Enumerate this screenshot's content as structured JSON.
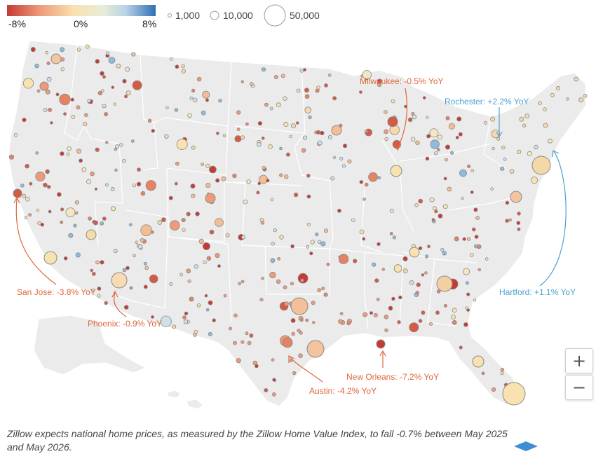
{
  "legend": {
    "color_ticks": [
      "-8%",
      "0%",
      "8%"
    ],
    "size_labels": [
      "1,000",
      "10,000",
      "50,000"
    ]
  },
  "colors": {
    "negative_strong": "#c63a36",
    "negative_mid": "#ee9a7a",
    "neutral": "#f8e2b0",
    "positive_mid": "#cfe0ea",
    "positive_strong": "#2f6fb5",
    "land": "#ebebeb",
    "border": "#ffffff",
    "annotation_negative": "#e0663b",
    "annotation_positive": "#4ba3cf"
  },
  "annotations": [
    {
      "id": "milwaukee",
      "text": "Milwaukee: -0.5% YoY",
      "sentiment": "negative"
    },
    {
      "id": "rochester",
      "text": "Rochester: +2.2% YoY",
      "sentiment": "positive"
    },
    {
      "id": "hartford",
      "text": "Hartford: +1.1% YoY",
      "sentiment": "positive"
    },
    {
      "id": "san-jose",
      "text": "San Jose: -3.8% YoY",
      "sentiment": "negative"
    },
    {
      "id": "phoenix",
      "text": "Phoenix: -0.9% YoY",
      "sentiment": "negative"
    },
    {
      "id": "austin",
      "text": "Austin: -4.2% YoY",
      "sentiment": "negative"
    },
    {
      "id": "new-orleans",
      "text": "New Orleans: -7.2% YoY",
      "sentiment": "negative"
    }
  ],
  "zoom": {
    "in": "+",
    "out": "−"
  },
  "caption": "Zillow expects national home prices, as measured by the Zillow Home Value Index, to fall -0.7% between May 2025 and May 2026."
}
